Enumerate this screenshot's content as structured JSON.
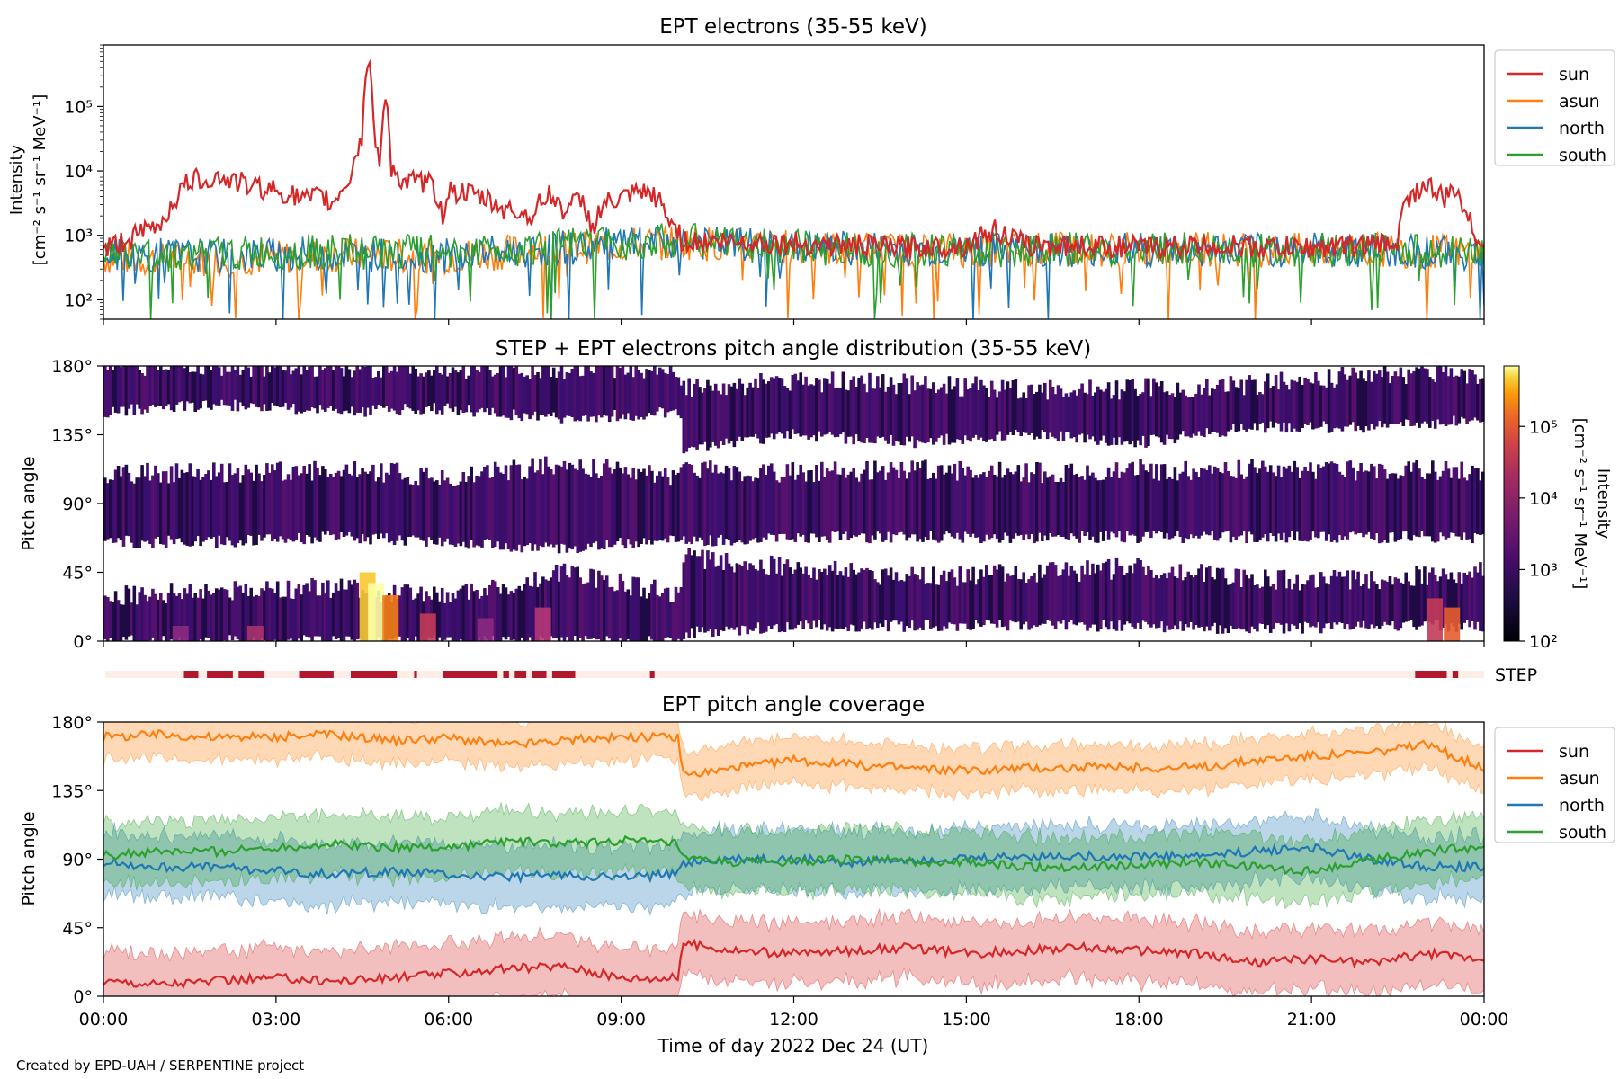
{
  "footer": "Created by EPD-UAH / SERPENTINE project",
  "chart_data": [
    {
      "type": "line",
      "title": "EPT electrons (35-55 keV)",
      "ylabel_line1": "Intensity",
      "ylabel_line2": "[cm⁻² s⁻¹ sr⁻¹ MeV⁻¹]",
      "yscale": "log",
      "ylim": [
        50,
        900000
      ],
      "xlim": [
        0,
        24
      ],
      "ytick_values": [
        100,
        1000,
        10000,
        100000
      ],
      "ytick_labels": [
        "10²",
        "10³",
        "10⁴",
        "10⁵"
      ],
      "legend_position": "outside-right",
      "series": [
        {
          "name": "sun",
          "color": "#d62728",
          "x": [
            0,
            0.5,
            1,
            1.2,
            1.5,
            2,
            2.5,
            3,
            3.5,
            3.8,
            4,
            4.3,
            4.5,
            4.6,
            4.7,
            4.8,
            4.9,
            5,
            5.2,
            5.5,
            5.7,
            5.9,
            6,
            6.5,
            7,
            7.5,
            7.7,
            8,
            8.3,
            8.5,
            8.7,
            9,
            9.3,
            9.6,
            9.8,
            10,
            10.05,
            11,
            12,
            13,
            14,
            15,
            15.5,
            16,
            17,
            18,
            19,
            20,
            21,
            22,
            22.5,
            22.7,
            23,
            23.3,
            23.5,
            23.8,
            24
          ],
          "values": [
            600,
            900,
            1500,
            3000,
            7000,
            8000,
            6000,
            5000,
            3500,
            4000,
            3000,
            8000,
            30000,
            550000,
            40000,
            8000,
            120000,
            12000,
            6000,
            7000,
            6000,
            2000,
            5000,
            4000,
            2500,
            2000,
            4500,
            2500,
            3500,
            1200,
            3000,
            3500,
            4500,
            4000,
            1800,
            1200,
            800,
            800,
            750,
            700,
            650,
            700,
            1200,
            700,
            700,
            650,
            700,
            650,
            650,
            700,
            800,
            4000,
            6000,
            3500,
            5000,
            1000,
            900
          ]
        },
        {
          "name": "asun",
          "color": "#ff7f0e",
          "x": [
            0,
            1,
            2,
            3,
            4,
            5,
            6,
            7,
            8,
            9,
            10,
            11,
            12,
            13,
            14,
            15,
            16,
            17,
            18,
            19,
            20,
            21,
            22,
            23,
            24
          ],
          "values": [
            450,
            420,
            430,
            450,
            500,
            480,
            470,
            550,
            650,
            700,
            800,
            700,
            650,
            620,
            600,
            600,
            600,
            610,
            600,
            620,
            600,
            580,
            600,
            560,
            550
          ]
        },
        {
          "name": "north",
          "color": "#1f77b4",
          "x": [
            0,
            1,
            2,
            3,
            4,
            5,
            6,
            7,
            8,
            9,
            10,
            11,
            12,
            13,
            14,
            15,
            16,
            17,
            18,
            19,
            20,
            21,
            22,
            23,
            24
          ],
          "values": [
            500,
            480,
            470,
            500,
            520,
            500,
            480,
            560,
            640,
            720,
            780,
            720,
            650,
            630,
            600,
            600,
            600,
            600,
            600,
            600,
            600,
            600,
            600,
            560,
            520
          ]
        },
        {
          "name": "south",
          "color": "#2ca02c",
          "x": [
            0,
            1,
            2,
            3,
            4,
            5,
            6,
            7,
            8,
            9,
            10,
            11,
            12,
            13,
            14,
            15,
            16,
            17,
            18,
            19,
            20,
            21,
            22,
            23,
            24
          ],
          "values": [
            520,
            500,
            520,
            540,
            560,
            550,
            560,
            600,
            700,
            760,
            850,
            720,
            650,
            620,
            600,
            600,
            600,
            600,
            600,
            600,
            600,
            600,
            600,
            560,
            540
          ]
        }
      ]
    },
    {
      "type": "heatmap",
      "title": "STEP + EPT electrons pitch angle distribution (35-55 keV)",
      "ylabel": "Pitch angle",
      "ylim": [
        0,
        180
      ],
      "ytick_values": [
        0,
        45,
        90,
        135,
        180
      ],
      "ytick_labels": [
        "0°",
        "45°",
        "90°",
        "135°",
        "180°"
      ],
      "colorbar": {
        "label_line1": "Intensity",
        "label_line2": "[cm⁻² s⁻¹ sr⁻¹ MeV⁻¹]",
        "scale": "log",
        "range": [
          100,
          700000
        ],
        "tick_values": [
          100,
          1000,
          10000,
          100000
        ],
        "tick_labels": [
          "10²",
          "10³",
          "10⁴",
          "10⁵"
        ],
        "colormap": "inferno"
      },
      "bands": [
        {
          "name": "sun",
          "x": [
            0,
            2,
            4,
            6,
            8,
            10,
            10.05,
            12,
            14,
            16,
            18,
            20,
            22,
            24
          ],
          "low": [
            0,
            0,
            0,
            0,
            0,
            0,
            5,
            10,
            10,
            10,
            10,
            8,
            10,
            10
          ],
          "high": [
            30,
            32,
            35,
            28,
            45,
            30,
            55,
            48,
            42,
            44,
            48,
            40,
            40,
            45
          ]
        },
        {
          "name": "asun",
          "x": [
            0,
            2,
            4,
            6,
            8,
            10,
            10.05,
            12,
            14,
            16,
            18,
            20,
            22,
            24
          ],
          "low": [
            150,
            155,
            150,
            152,
            145,
            150,
            125,
            135,
            130,
            135,
            130,
            140,
            140,
            145
          ],
          "high": [
            180,
            180,
            180,
            178,
            178,
            178,
            165,
            170,
            168,
            165,
            165,
            168,
            175,
            175
          ]
        },
        {
          "name": "north",
          "x": [
            0,
            2,
            4,
            6,
            8,
            10,
            10.05,
            12,
            14,
            16,
            18,
            20,
            22,
            24
          ],
          "low": [
            65,
            65,
            68,
            65,
            60,
            68,
            65,
            68,
            68,
            68,
            68,
            68,
            68,
            68
          ],
          "high": [
            110,
            110,
            112,
            108,
            115,
            108,
            112,
            110,
            112,
            110,
            112,
            112,
            112,
            112
          ]
        }
      ],
      "step_intervals_hours": [
        [
          1.4,
          1.65
        ],
        [
          1.8,
          2.25
        ],
        [
          2.35,
          2.8
        ],
        [
          3.4,
          4.0
        ],
        [
          4.3,
          5.1
        ],
        [
          5.4,
          5.45
        ],
        [
          5.9,
          6.85
        ],
        [
          6.95,
          7.05
        ],
        [
          7.15,
          7.35
        ],
        [
          7.45,
          7.7
        ],
        [
          7.8,
          8.2
        ],
        [
          9.5,
          9.58
        ],
        [
          22.8,
          23.35
        ],
        [
          23.45,
          23.55
        ]
      ],
      "step_label": "STEP"
    },
    {
      "type": "area",
      "title": "EPT pitch angle coverage",
      "ylabel": "Pitch angle",
      "xlabel": "Time of day 2022 Dec 24 (UT)",
      "ylim": [
        0,
        180
      ],
      "xlim": [
        0,
        24
      ],
      "ytick_values": [
        0,
        45,
        90,
        135,
        180
      ],
      "ytick_labels": [
        "0°",
        "45°",
        "90°",
        "135°",
        "180°"
      ],
      "xtick_values": [
        0,
        3,
        6,
        9,
        12,
        15,
        18,
        21,
        24
      ],
      "xtick_labels": [
        "00:00",
        "03:00",
        "06:00",
        "09:00",
        "12:00",
        "15:00",
        "18:00",
        "21:00",
        "00:00"
      ],
      "legend_position": "outside-right",
      "series": [
        {
          "name": "sun",
          "color": "#d62728",
          "x": [
            0,
            1,
            2,
            3,
            4,
            5,
            6,
            7,
            8,
            9,
            10,
            10.05,
            11,
            12,
            13,
            14,
            15,
            16,
            17,
            18,
            19,
            20,
            21,
            22,
            23,
            24
          ],
          "values": [
            10,
            8,
            10,
            12,
            10,
            12,
            15,
            18,
            20,
            12,
            12,
            35,
            30,
            28,
            30,
            32,
            28,
            30,
            32,
            30,
            28,
            22,
            25,
            22,
            28,
            25
          ],
          "spread": 20
        },
        {
          "name": "asun",
          "color": "#ff7f0e",
          "x": [
            0,
            1,
            2,
            3,
            4,
            5,
            6,
            7,
            8,
            9,
            10,
            10.05,
            11,
            12,
            13,
            14,
            15,
            16,
            17,
            18,
            19,
            20,
            21,
            22,
            23,
            24
          ],
          "values": [
            170,
            172,
            170,
            170,
            172,
            168,
            170,
            165,
            168,
            170,
            170,
            145,
            150,
            155,
            152,
            150,
            148,
            150,
            150,
            150,
            150,
            155,
            158,
            160,
            165,
            150
          ],
          "spread": 15
        },
        {
          "name": "north",
          "color": "#1f77b4",
          "x": [
            0,
            1,
            2,
            3,
            4,
            5,
            6,
            7,
            8,
            9,
            10,
            10.05,
            11,
            12,
            13,
            14,
            15,
            16,
            17,
            18,
            19,
            20,
            21,
            22,
            23,
            24
          ],
          "values": [
            88,
            85,
            85,
            82,
            80,
            82,
            80,
            78,
            80,
            78,
            80,
            88,
            90,
            90,
            88,
            90,
            90,
            92,
            92,
            92,
            92,
            95,
            98,
            90,
            85,
            85
          ],
          "spread": 20
        },
        {
          "name": "south",
          "color": "#2ca02c",
          "x": [
            0,
            1,
            2,
            3,
            4,
            5,
            6,
            7,
            8,
            9,
            10,
            10.05,
            11,
            12,
            13,
            14,
            15,
            16,
            17,
            18,
            19,
            20,
            21,
            22,
            23,
            24
          ],
          "values": [
            92,
            95,
            95,
            98,
            100,
            98,
            98,
            102,
            100,
            102,
            100,
            90,
            88,
            88,
            90,
            88,
            88,
            85,
            85,
            86,
            88,
            85,
            82,
            90,
            95,
            98
          ],
          "spread": 20
        }
      ]
    }
  ]
}
